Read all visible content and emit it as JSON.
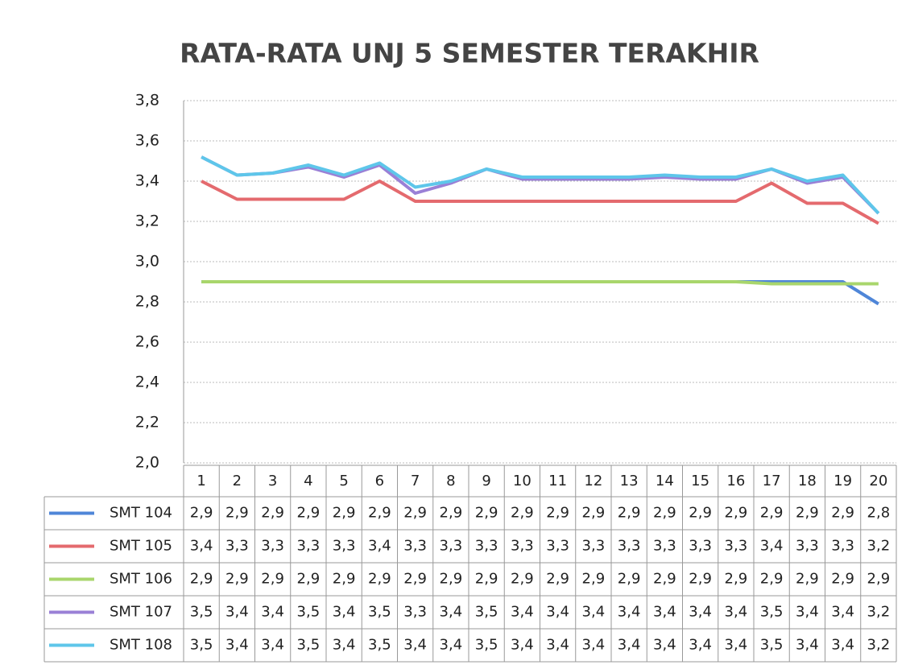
{
  "chart_data": {
    "type": "line",
    "title": "RATA-RATA UNJ 5 SEMESTER TERAKHIR",
    "categories": [
      "1",
      "2",
      "3",
      "4",
      "5",
      "6",
      "7",
      "8",
      "9",
      "10",
      "11",
      "12",
      "13",
      "14",
      "15",
      "16",
      "17",
      "18",
      "19",
      "20"
    ],
    "ylim": [
      2.0,
      3.8
    ],
    "yticks": [
      {
        "value": 2.0,
        "label": "2,0"
      },
      {
        "value": 2.2,
        "label": "2,2"
      },
      {
        "value": 2.4,
        "label": "2,4"
      },
      {
        "value": 2.6,
        "label": "2,6"
      },
      {
        "value": 2.8,
        "label": "2,8"
      },
      {
        "value": 3.0,
        "label": "3,0"
      },
      {
        "value": 3.2,
        "label": "3,2"
      },
      {
        "value": 3.4,
        "label": "3,4"
      },
      {
        "value": 3.6,
        "label": "3,6"
      },
      {
        "value": 3.8,
        "label": "3,8"
      }
    ],
    "grid": true,
    "series": [
      {
        "name": "SMT 104",
        "color": "#4f86d8",
        "values": [
          2.9,
          2.9,
          2.9,
          2.9,
          2.9,
          2.9,
          2.9,
          2.9,
          2.9,
          2.9,
          2.9,
          2.9,
          2.9,
          2.9,
          2.9,
          2.9,
          2.9,
          2.9,
          2.9,
          2.79
        ],
        "value_labels": [
          "2,9",
          "2,9",
          "2,9",
          "2,9",
          "2,9",
          "2,9",
          "2,9",
          "2,9",
          "2,9",
          "2,9",
          "2,9",
          "2,9",
          "2,9",
          "2,9",
          "2,9",
          "2,9",
          "2,9",
          "2,9",
          "2,9",
          "2,8"
        ]
      },
      {
        "name": "SMT 105",
        "color": "#e46a6e",
        "values": [
          3.4,
          3.31,
          3.31,
          3.31,
          3.31,
          3.4,
          3.3,
          3.3,
          3.3,
          3.3,
          3.3,
          3.3,
          3.3,
          3.3,
          3.3,
          3.3,
          3.39,
          3.29,
          3.29,
          3.19
        ],
        "value_labels": [
          "3,4",
          "3,3",
          "3,3",
          "3,3",
          "3,3",
          "3,4",
          "3,3",
          "3,3",
          "3,3",
          "3,3",
          "3,3",
          "3,3",
          "3,3",
          "3,3",
          "3,3",
          "3,3",
          "3,4",
          "3,3",
          "3,3",
          "3,2"
        ]
      },
      {
        "name": "SMT 106",
        "color": "#a9d66c",
        "values": [
          2.9,
          2.9,
          2.9,
          2.9,
          2.9,
          2.9,
          2.9,
          2.9,
          2.9,
          2.9,
          2.9,
          2.9,
          2.9,
          2.9,
          2.9,
          2.9,
          2.89,
          2.89,
          2.89,
          2.89
        ],
        "value_labels": [
          "2,9",
          "2,9",
          "2,9",
          "2,9",
          "2,9",
          "2,9",
          "2,9",
          "2,9",
          "2,9",
          "2,9",
          "2,9",
          "2,9",
          "2,9",
          "2,9",
          "2,9",
          "2,9",
          "2,9",
          "2,9",
          "2,9",
          "2,9"
        ]
      },
      {
        "name": "SMT 107",
        "color": "#9a80d6",
        "values": [
          3.52,
          3.43,
          3.44,
          3.47,
          3.42,
          3.48,
          3.34,
          3.39,
          3.46,
          3.41,
          3.41,
          3.41,
          3.41,
          3.42,
          3.41,
          3.41,
          3.46,
          3.39,
          3.42,
          3.24
        ],
        "value_labels": [
          "3,5",
          "3,4",
          "3,4",
          "3,5",
          "3,4",
          "3,5",
          "3,3",
          "3,4",
          "3,5",
          "3,4",
          "3,4",
          "3,4",
          "3,4",
          "3,4",
          "3,4",
          "3,4",
          "3,5",
          "3,4",
          "3,4",
          "3,2"
        ]
      },
      {
        "name": "SMT 108",
        "color": "#5ec6ea",
        "values": [
          3.52,
          3.43,
          3.44,
          3.48,
          3.43,
          3.49,
          3.37,
          3.4,
          3.46,
          3.42,
          3.42,
          3.42,
          3.42,
          3.43,
          3.42,
          3.42,
          3.46,
          3.4,
          3.43,
          3.24
        ],
        "value_labels": [
          "3,5",
          "3,4",
          "3,4",
          "3,5",
          "3,4",
          "3,5",
          "3,4",
          "3,4",
          "3,5",
          "3,4",
          "3,4",
          "3,4",
          "3,4",
          "3,4",
          "3,4",
          "3,4",
          "3,5",
          "3,4",
          "3,4",
          "3,2"
        ]
      }
    ]
  }
}
